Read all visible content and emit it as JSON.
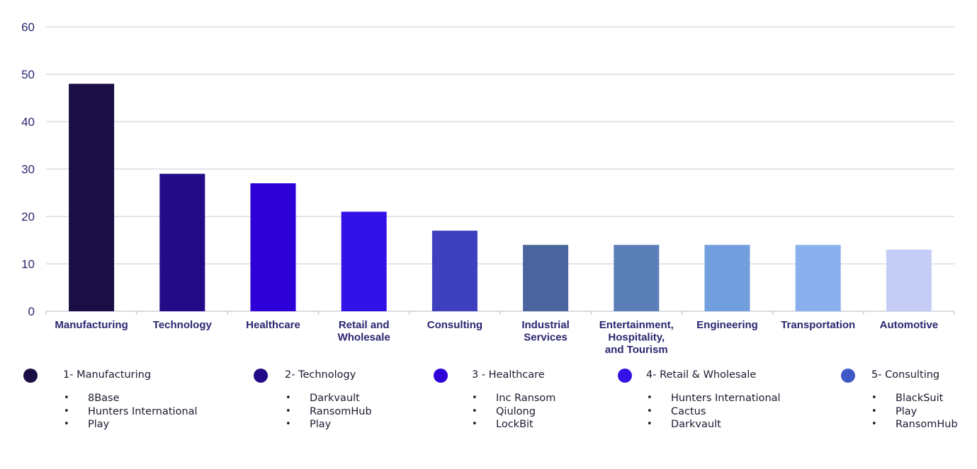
{
  "chart_data": {
    "type": "bar",
    "categories": [
      "Manufacturing",
      "Technology",
      "Healthcare",
      "Retail and\nWholesale",
      "Consulting",
      "Industrial\nServices",
      "Entertainment,\nHospitality,\nand Tourism",
      "Engineering",
      "Transportation",
      "Automotive"
    ],
    "values": [
      48,
      29,
      27,
      21,
      17,
      14,
      14,
      14,
      14,
      13
    ],
    "colors": [
      "#1a0e45",
      "#230a86",
      "#2e00d8",
      "#3212e6",
      "#3e40bd",
      "#4a649e",
      "#5b7fb7",
      "#719edd",
      "#8ab0ee",
      "#c5cdf6"
    ],
    "ylim": [
      0,
      60
    ],
    "yticks": [
      0,
      10,
      20,
      30,
      40,
      50,
      60
    ],
    "grid": true,
    "title": "",
    "xlabel": "",
    "ylabel": ""
  },
  "legend": [
    {
      "title": "1- Manufacturing",
      "color": "#1a0e45",
      "items": [
        "8Base",
        "Hunters International",
        "Play"
      ]
    },
    {
      "title": "2- Technology",
      "color": "#230a86",
      "items": [
        "Darkvault",
        "RansomHub",
        "Play"
      ]
    },
    {
      "title": "3 - Healthcare",
      "color": "#2e00d8",
      "items": [
        "Inc Ransom",
        "Qiulong",
        "LockBit"
      ]
    },
    {
      "title": "4- Retail & Wholesale",
      "color": "#3212e6",
      "items": [
        "Hunters International",
        "Cactus",
        "Darkvault"
      ]
    },
    {
      "title": "5- Consulting",
      "color": "#3e58c8",
      "items": [
        "BlackSuit",
        "Play",
        "RansomHub"
      ]
    }
  ]
}
